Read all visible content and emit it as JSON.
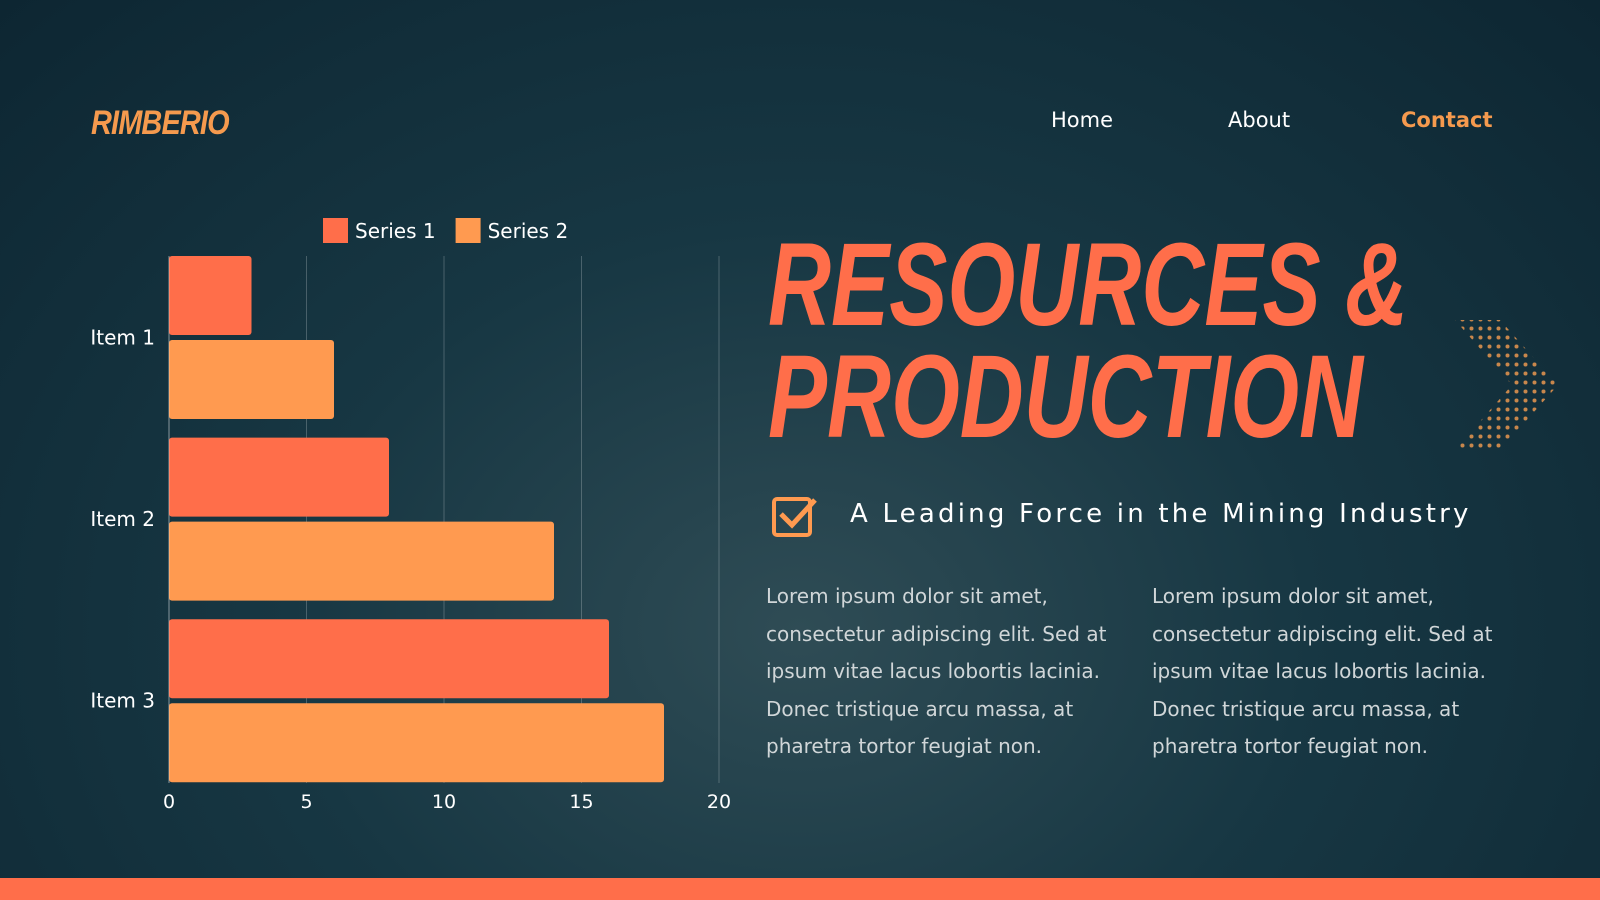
{
  "header": {
    "logo": "RIMBERIO",
    "nav": [
      "Home",
      "About",
      "Contact"
    ]
  },
  "hero": {
    "title_lines": [
      "RESOURCES &",
      "PRODUCTION"
    ],
    "subtitle": "A Leading Force in the Mining Industry",
    "paragraphs": [
      "Lorem ipsum dolor sit amet, consectetur adipiscing elit. Sed at ipsum vitae lacus lobortis lacinia. Donec tristique arcu massa, at pharetra tortor feugiat non.",
      "Lorem ipsum dolor sit amet, consectetur adipiscing elit. Sed at ipsum vitae lacus lobortis lacinia. Donec tristique arcu massa, at pharetra tortor feugiat non."
    ]
  },
  "chart_data": {
    "type": "hbar",
    "categories": [
      "Item 1",
      "Item 2",
      "Item 3"
    ],
    "series": [
      {
        "name": "Series 1",
        "color": "#ff6e4a",
        "values": [
          3,
          8,
          16
        ]
      },
      {
        "name": "Series 2",
        "color": "#ff9a50",
        "values": [
          6,
          14,
          18
        ]
      }
    ],
    "xlim": [
      0,
      20
    ],
    "xticks": [
      0,
      5,
      10,
      15,
      20
    ],
    "grid": true,
    "legend": "top"
  }
}
